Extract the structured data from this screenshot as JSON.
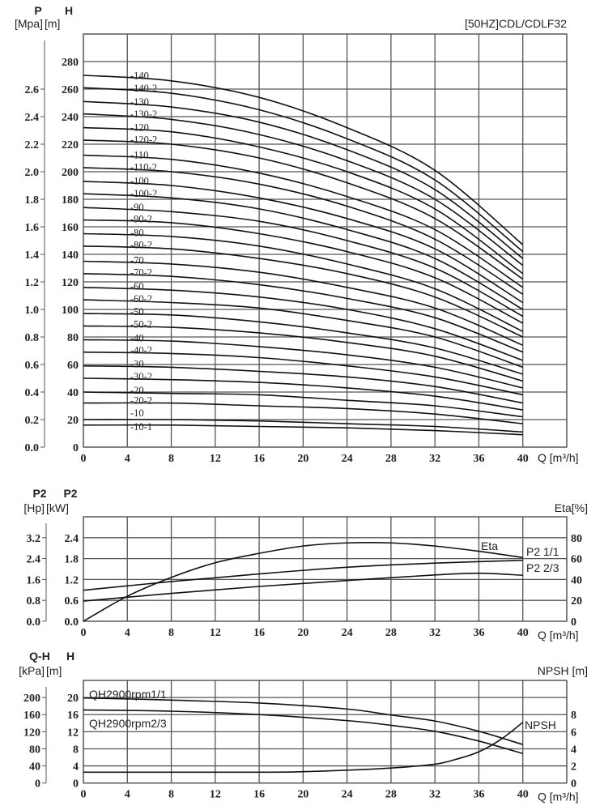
{
  "colors": {
    "grid": "#555555",
    "curve": "#111111",
    "background": "#ffffff"
  },
  "chart_data": [
    {
      "type": "line",
      "title": "[50HZ]CDL/CDLF32",
      "xlabel": "Q [m³/h]",
      "ylabel_top": "H",
      "ylabel_unit": "[m]",
      "y2label_top": "P",
      "y2label_unit": "[Mpa]",
      "xlim": [
        0,
        44
      ],
      "ylim": [
        0,
        300
      ],
      "grid": true,
      "x_ticks": [
        "0",
        "4",
        "8",
        "12",
        "16",
        "20",
        "24",
        "28",
        "32",
        "36",
        "40"
      ],
      "y_ticks": [
        "0",
        "20",
        "40",
        "60",
        "80",
        "100",
        "120",
        "140",
        "160",
        "180",
        "200",
        "220",
        "240",
        "260",
        "280"
      ],
      "y2_ticks": [
        "0.0",
        "0.2",
        "0.4",
        "0.6",
        "0.8",
        "1.0",
        "1.2",
        "1.4",
        "1.6",
        "1.8",
        "2.0",
        "2.2",
        "2.4",
        "2.6"
      ],
      "x": [
        0,
        8,
        16,
        24,
        32,
        40
      ],
      "series": [
        {
          "name": "-140",
          "values": [
            270,
            266,
            254,
            232,
            201,
            147
          ]
        },
        {
          "name": "-140-2",
          "values": [
            261,
            257,
            245,
            224,
            194,
            142
          ]
        },
        {
          "name": "-130",
          "values": [
            251,
            247,
            236,
            216,
            187,
            137
          ]
        },
        {
          "name": "-130-2",
          "values": [
            242,
            238,
            227,
            208,
            180,
            132
          ]
        },
        {
          "name": "-120",
          "values": [
            232,
            229,
            218,
            200,
            173,
            126
          ]
        },
        {
          "name": "-120-2",
          "values": [
            223,
            220,
            210,
            192,
            166,
            122
          ]
        },
        {
          "name": "-110",
          "values": [
            212,
            209,
            199,
            182,
            158,
            116
          ]
        },
        {
          "name": "-110-2",
          "values": [
            203,
            200,
            191,
            175,
            151,
            111
          ]
        },
        {
          "name": "-100",
          "values": [
            193,
            190,
            181,
            166,
            144,
            105
          ]
        },
        {
          "name": "-100-2",
          "values": [
            184,
            181,
            173,
            158,
            137,
            100
          ]
        },
        {
          "name": "-90",
          "values": [
            174,
            171,
            164,
            150,
            130,
            95
          ]
        },
        {
          "name": "-90-2",
          "values": [
            165,
            163,
            155,
            142,
            123,
            90
          ]
        },
        {
          "name": "-80",
          "values": [
            155,
            153,
            146,
            133,
            115,
            84
          ]
        },
        {
          "name": "-80-2",
          "values": [
            146,
            144,
            137,
            126,
            109,
            80
          ]
        },
        {
          "name": "-70",
          "values": [
            135,
            133,
            127,
            116,
            101,
            74
          ]
        },
        {
          "name": "-70-2",
          "values": [
            126,
            124,
            118,
            108,
            94,
            69
          ]
        },
        {
          "name": "-60",
          "values": [
            116,
            114,
            109,
            100,
            86,
            63
          ]
        },
        {
          "name": "-60-2",
          "values": [
            107,
            105,
            101,
            92,
            80,
            58
          ]
        },
        {
          "name": "-50",
          "values": [
            97,
            96,
            91,
            83,
            72,
            53
          ]
        },
        {
          "name": "-50-2",
          "values": [
            88,
            87,
            83,
            76,
            66,
            48
          ]
        },
        {
          "name": "-40",
          "values": [
            78,
            77,
            73,
            67,
            58,
            43
          ]
        },
        {
          "name": "-40-2",
          "values": [
            69,
            68,
            65,
            59,
            51,
            38
          ]
        },
        {
          "name": "-30",
          "values": [
            59,
            58,
            55,
            51,
            44,
            32
          ]
        },
        {
          "name": "-30-2",
          "values": [
            50,
            49,
            47,
            43,
            37,
            27
          ]
        },
        {
          "name": "-20",
          "values": [
            40,
            39,
            38,
            34,
            30,
            22
          ]
        },
        {
          "name": "-20-2",
          "values": [
            32,
            32,
            30,
            28,
            24,
            17
          ]
        },
        {
          "name": "-10",
          "values": [
            20,
            20,
            19,
            17,
            15,
            11
          ]
        },
        {
          "name": "-10-1",
          "values": [
            16,
            16,
            15,
            14,
            12,
            9
          ]
        }
      ]
    },
    {
      "type": "line",
      "xlabel": "Q [m³/h]",
      "ylabel_top": "P2",
      "ylabel_unit": "[kW]",
      "y2label_top": "P2",
      "y2label_unit": "[Hp]",
      "yrightlabel": "Eta[%]",
      "xlim": [
        0,
        44
      ],
      "ylim": [
        0,
        3.0
      ],
      "yright_lim": [
        0,
        100
      ],
      "grid": true,
      "x_ticks": [
        "0",
        "4",
        "8",
        "12",
        "16",
        "20",
        "24",
        "28",
        "32",
        "36",
        "40"
      ],
      "y_ticks": [
        "0.0",
        "0.6",
        "1.2",
        "1.8",
        "2.4"
      ],
      "y2_ticks": [
        "0.0",
        "0.8",
        "1.6",
        "2.4",
        "3.2"
      ],
      "yright_ticks": [
        "0",
        "20",
        "40",
        "60",
        "80"
      ],
      "series": [
        {
          "name": "Eta",
          "axis": "right",
          "x": [
            0,
            4,
            8,
            12,
            16,
            20,
            24,
            28,
            32,
            36,
            40
          ],
          "values": [
            0,
            24,
            42,
            56,
            65,
            72,
            75,
            75,
            72,
            67,
            61
          ]
        },
        {
          "name": "P2 1/1",
          "axis": "left",
          "x": [
            0,
            8,
            16,
            24,
            32,
            40
          ],
          "values": [
            0.89,
            1.14,
            1.36,
            1.55,
            1.67,
            1.75
          ]
        },
        {
          "name": "P2 2/3",
          "axis": "left",
          "x": [
            0,
            8,
            16,
            24,
            32,
            36,
            40
          ],
          "values": [
            0.58,
            0.8,
            1.0,
            1.17,
            1.33,
            1.38,
            1.32
          ]
        }
      ]
    },
    {
      "type": "line",
      "xlabel": "Q [m³/h]",
      "ylabel_top": "H",
      "ylabel_unit": "[m]",
      "y2label_top": "Q-H",
      "y2label_unit": "[kPa]",
      "yrightlabel": "NPSH [m]",
      "xlim": [
        0,
        44
      ],
      "ylim": [
        0,
        24
      ],
      "yright_lim": [
        0,
        12
      ],
      "grid": true,
      "x_ticks": [
        "0",
        "4",
        "8",
        "12",
        "16",
        "20",
        "24",
        "28",
        "32",
        "36",
        "40"
      ],
      "y_ticks": [
        "0",
        "4",
        "8",
        "12",
        "16",
        "20"
      ],
      "y2_ticks": [
        "0",
        "40",
        "80",
        "120",
        "160",
        "200"
      ],
      "yright_ticks": [
        "0",
        "2",
        "4",
        "6",
        "8"
      ],
      "series": [
        {
          "name": "QH2900rpm1/1",
          "axis": "left",
          "x": [
            0,
            8,
            16,
            24,
            28,
            32,
            36,
            40
          ],
          "values": [
            19.9,
            19.4,
            18.7,
            17.3,
            15.9,
            14.5,
            12.1,
            9.0
          ]
        },
        {
          "name": "QH2900rpm2/3",
          "axis": "left",
          "x": [
            0,
            8,
            16,
            24,
            28,
            32,
            36,
            40
          ],
          "values": [
            17.1,
            16.8,
            16.0,
            14.6,
            13.5,
            12.1,
            9.8,
            6.9
          ]
        },
        {
          "name": "NPSH",
          "axis": "right",
          "x": [
            0,
            16,
            20,
            24,
            28,
            32,
            34,
            36,
            38,
            40
          ],
          "values": [
            1.27,
            1.27,
            1.33,
            1.5,
            1.75,
            2.2,
            2.8,
            3.65,
            5.1,
            7.1
          ]
        }
      ]
    }
  ]
}
